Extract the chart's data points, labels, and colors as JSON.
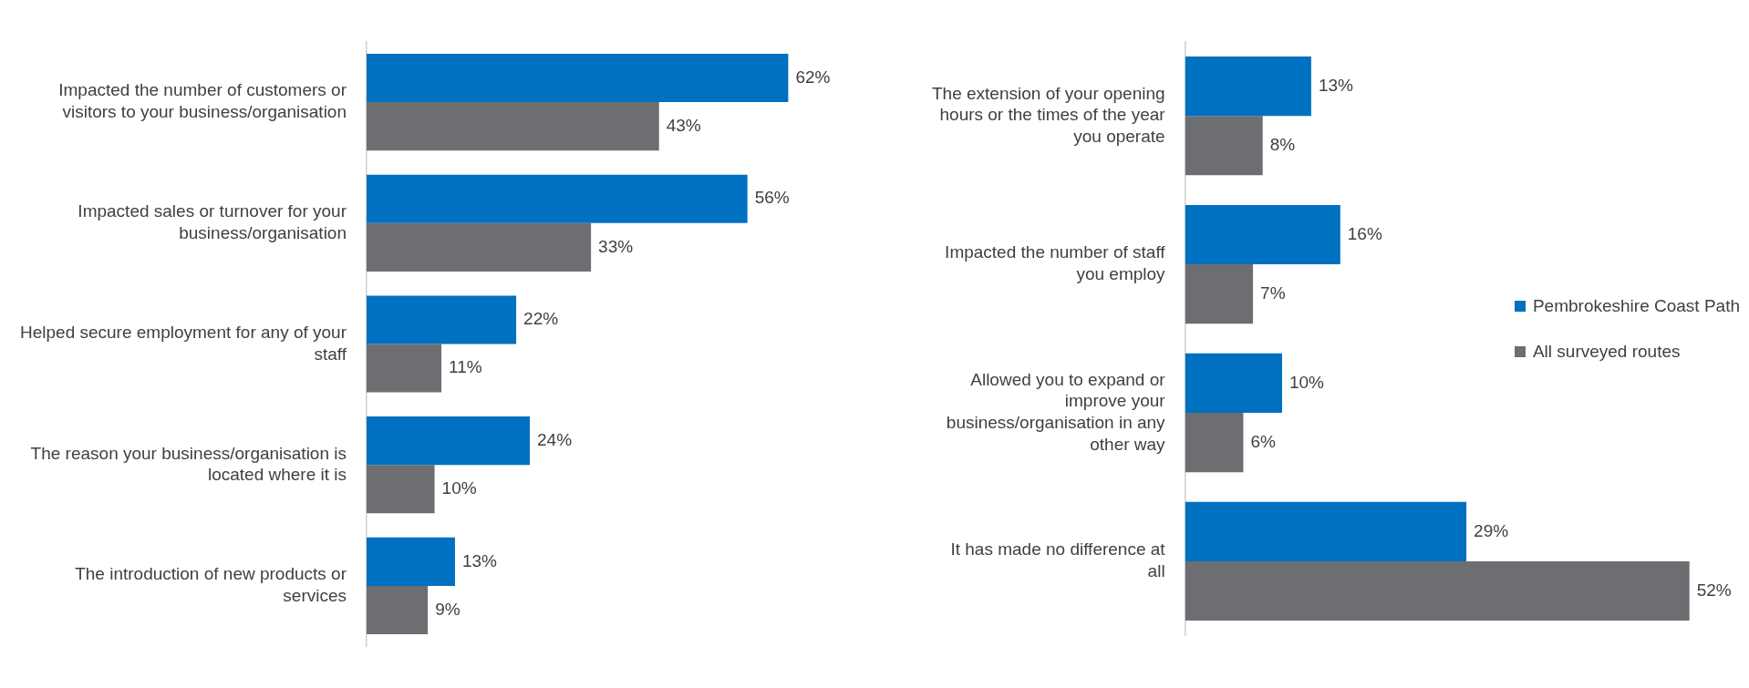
{
  "chart_data": [
    {
      "type": "bar",
      "orientation": "horizontal",
      "categories": [
        "Impacted the number of customers or visitors to your business/organisation",
        "Impacted sales or turnover for your business/organisation",
        "Helped secure employment for any of your staff",
        "The reason your business/organisation is located where it is",
        "The introduction of new products or services"
      ],
      "series": [
        {
          "color": "#0070c0",
          "values": [
            62,
            56,
            22,
            24,
            13
          ],
          "value_labels": [
            "62%",
            "56%",
            "22%",
            "24%",
            "13%"
          ]
        },
        {
          "color": "#6d6e71",
          "values": [
            43,
            33,
            11,
            10,
            9
          ],
          "value_labels": [
            "43%",
            "33%",
            "11%",
            "10%",
            "9%"
          ]
        }
      ],
      "tick_labels": "y",
      "grid": false,
      "legend": false
    },
    {
      "type": "bar",
      "orientation": "horizontal",
      "categories": [
        "The extension of your opening hours or the times of the year you operate",
        "Impacted the number of staff you employ",
        "Allowed you to expand or improve your business/organisation in any other way",
        "It has made no difference at all"
      ],
      "series": [
        {
          "name": "Pembrokeshire Coast Path",
          "color": "#0070c0",
          "values": [
            13,
            16,
            10,
            29
          ],
          "value_labels": [
            "13%",
            "16%",
            "10%",
            "29%"
          ]
        },
        {
          "name": "All surveyed routes",
          "color": "#6d6e71",
          "values": [
            8,
            7,
            6,
            52
          ],
          "value_labels": [
            "8%",
            "7%",
            "6%",
            "52%"
          ]
        }
      ],
      "tick_labels": "y",
      "grid": false,
      "legend": "right"
    }
  ]
}
